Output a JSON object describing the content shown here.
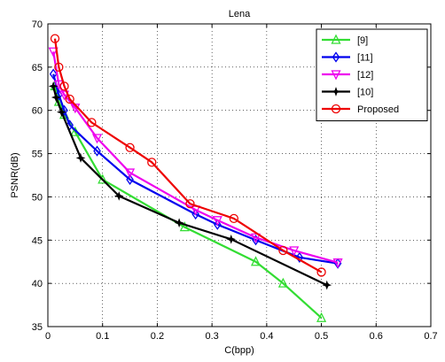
{
  "chart_data": {
    "type": "line",
    "title": "Lena",
    "xlabel": "C(bpp)",
    "ylabel": "PSNR(dB)",
    "xlim": [
      0,
      0.7
    ],
    "ylim": [
      35,
      70
    ],
    "xticks": [
      "0",
      "0.1",
      "0.2",
      "0.3",
      "0.4",
      "0.5",
      "0.6",
      "0.7"
    ],
    "yticks": [
      "35",
      "40",
      "45",
      "50",
      "55",
      "60",
      "65",
      "70"
    ],
    "grid": true,
    "legend_position": "top-right",
    "series": [
      {
        "name": "[9]",
        "color": "#33dd33",
        "marker": "triangle-up",
        "x": [
          0.013,
          0.02,
          0.03,
          0.05,
          0.1,
          0.25,
          0.38,
          0.43,
          0.5
        ],
        "y": [
          62.8,
          61.0,
          59.5,
          57.5,
          52.0,
          46.5,
          42.5,
          40.0,
          36.0
        ]
      },
      {
        "name": "[11]",
        "color": "#0000ee",
        "marker": "diamond",
        "x": [
          0.01,
          0.02,
          0.03,
          0.04,
          0.09,
          0.15,
          0.27,
          0.31,
          0.38,
          0.46,
          0.53
        ],
        "y": [
          64.2,
          61.8,
          60.0,
          58.3,
          55.3,
          52.0,
          48.0,
          46.8,
          45.0,
          43.0,
          42.3
        ]
      },
      {
        "name": "[12]",
        "color": "#ee00ee",
        "marker": "triangle-down",
        "x": [
          0.01,
          0.02,
          0.03,
          0.05,
          0.09,
          0.15,
          0.27,
          0.31,
          0.38,
          0.45,
          0.53
        ],
        "y": [
          66.8,
          63.0,
          61.8,
          60.3,
          56.8,
          52.8,
          48.5,
          47.3,
          45.3,
          43.8,
          42.4
        ]
      },
      {
        "name": "[10]",
        "color": "#000000",
        "marker": "star",
        "x": [
          0.01,
          0.015,
          0.025,
          0.06,
          0.13,
          0.24,
          0.335,
          0.51
        ],
        "y": [
          62.8,
          61.5,
          59.8,
          54.5,
          50.1,
          47.0,
          45.1,
          39.8
        ]
      },
      {
        "name": "Proposed",
        "color": "#ee0000",
        "marker": "circle",
        "x": [
          0.013,
          0.02,
          0.03,
          0.04,
          0.08,
          0.15,
          0.19,
          0.26,
          0.34,
          0.43,
          0.5
        ],
        "y": [
          68.3,
          65.0,
          62.8,
          61.3,
          58.6,
          55.7,
          54.0,
          49.2,
          47.5,
          43.8,
          41.3
        ]
      }
    ]
  }
}
